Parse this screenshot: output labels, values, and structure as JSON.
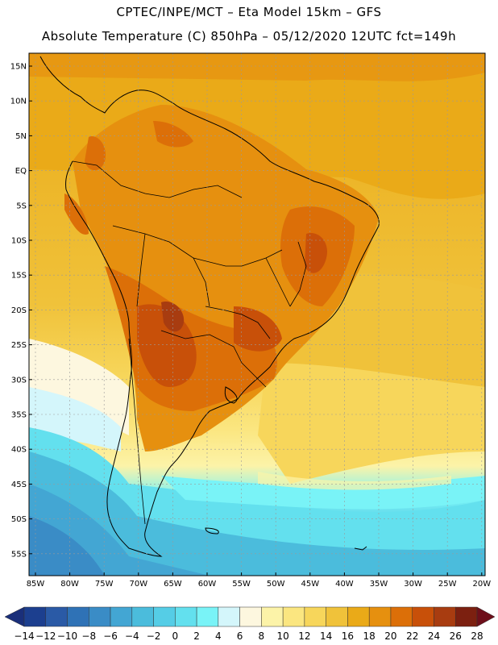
{
  "header": {
    "line1": "CPTEC/INPE/MCT –  Eta Model 15km – GFS",
    "line2": "Absolute Temperature (C) 850hPa – 05/12/2020 12UTC fct=149h"
  },
  "map": {
    "lat_labels": [
      "15N",
      "10N",
      "5N",
      "EQ",
      "5S",
      "10S",
      "15S",
      "20S",
      "25S",
      "30S",
      "35S",
      "40S",
      "45S",
      "50S",
      "55S"
    ],
    "lon_labels": [
      "85W",
      "80W",
      "75W",
      "70W",
      "65W",
      "60W",
      "55W",
      "50W",
      "45W",
      "40W",
      "35W",
      "30W",
      "25W",
      "20W"
    ]
  },
  "colorbar": {
    "labels": [
      "-14",
      "-12",
      "-10",
      "-8",
      "-6",
      "-4",
      "-2",
      "0",
      "2",
      "4",
      "6",
      "8",
      "10",
      "12",
      "14",
      "16",
      "18",
      "20",
      "22",
      "24",
      "26",
      "28"
    ],
    "colors": [
      "#1c3f8f",
      "#2a5aa6",
      "#2f72b6",
      "#3a8cc6",
      "#43a6d3",
      "#4bbcdc",
      "#55cde6",
      "#63e0ee",
      "#79f3f7",
      "#d4f6fb",
      "#fdf7df",
      "#fcf3a8",
      "#fbe680",
      "#f7d65b",
      "#f0c23a",
      "#eaaa18",
      "#e6900f",
      "#dc6f08",
      "#c85009",
      "#a83c10",
      "#7c2010"
    ],
    "under_color": "#1a2f7a",
    "over_color": "#6e0f1a"
  }
}
